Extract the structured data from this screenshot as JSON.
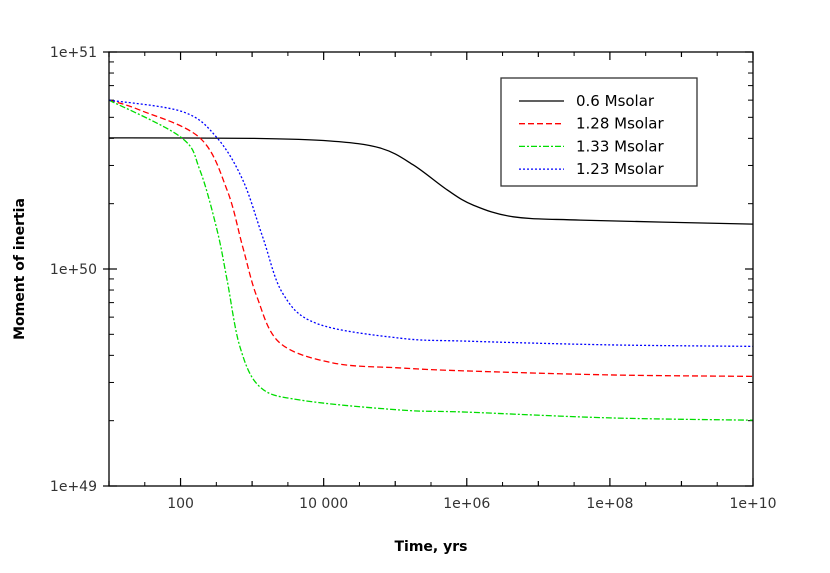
{
  "chart_data": {
    "type": "line",
    "title": "",
    "xlabel": "Time, yrs",
    "ylabel": "Moment of inertia",
    "xscale": "log",
    "yscale": "log",
    "xlim": [
      10,
      10000000000.0
    ],
    "ylim": [
      1e+49,
      1e+51
    ],
    "x_ticks": [
      {
        "value": 100,
        "label": "100"
      },
      {
        "value": 10000,
        "label": "10 000"
      },
      {
        "value": 1000000.0,
        "label": "1e+06"
      },
      {
        "value": 100000000.0,
        "label": "1e+08"
      },
      {
        "value": 10000000000.0,
        "label": "1e+10"
      }
    ],
    "y_ticks": [
      {
        "value": 1e+49,
        "label": "1e+49"
      },
      {
        "value": 1e+50,
        "label": "1e+50"
      },
      {
        "value": 1e+51,
        "label": "1e+51"
      }
    ],
    "legend_position": "top-right",
    "series": [
      {
        "name": "0.6 Msolar",
        "color": "#000000",
        "dash": "solid",
        "x": [
          10,
          1000,
          12300,
          61700,
          178000,
          537000,
          1230000,
          4470000,
          38900000,
          10000000000.0
        ],
        "y": [
          4.02e+50,
          4e+50,
          3.89e+50,
          3.61e+50,
          3.02e+50,
          2.31e+50,
          1.97e+50,
          1.74e+50,
          1.68e+50,
          1.61e+50
        ]
      },
      {
        "name": "1.28 Msolar",
        "color": "#ff0000",
        "dash": "dashed",
        "x": [
          10,
          27,
          186,
          447,
          741,
          1175,
          2450,
          13500,
          117000,
          1000000.0,
          100000000.0,
          10000000000.0
        ],
        "y": [
          6e+50,
          5.4e+50,
          4.02e+50,
          2.31e+50,
          1.26e+50,
          7.4e+49,
          4.56e+49,
          3.69e+49,
          3.5e+49,
          3.39e+49,
          3.25e+49,
          3.2e+49
        ]
      },
      {
        "name": "1.33 Msolar",
        "color": "#00dd00",
        "dash": "dash-dot",
        "x": [
          10,
          100,
          186,
          324,
          447,
          676,
          1290,
          4680,
          117000,
          1000000.0,
          100000000.0,
          10000000000.0
        ],
        "y": [
          6e+50,
          4.06e+50,
          2.86e+50,
          1.51e+50,
          8.9e+49,
          4.38e+49,
          2.86e+49,
          2.49e+49,
          2.24e+49,
          2.19e+49,
          2.06e+49,
          2.01e+49
        ]
      },
      {
        "name": "1.23 Msolar",
        "color": "#0000ff",
        "dash": "dotted",
        "x": [
          10,
          108,
          324,
          741,
          1410,
          2690,
          8100,
          117000,
          1000000.0,
          100000000.0,
          10000000000.0
        ],
        "y": [
          6e+50,
          5.3e+50,
          4.02e+50,
          2.57e+50,
          1.4e+50,
          7.7e+49,
          5.6e+49,
          4.8e+49,
          4.65e+49,
          4.47e+49,
          4.4e+49
        ]
      }
    ]
  }
}
